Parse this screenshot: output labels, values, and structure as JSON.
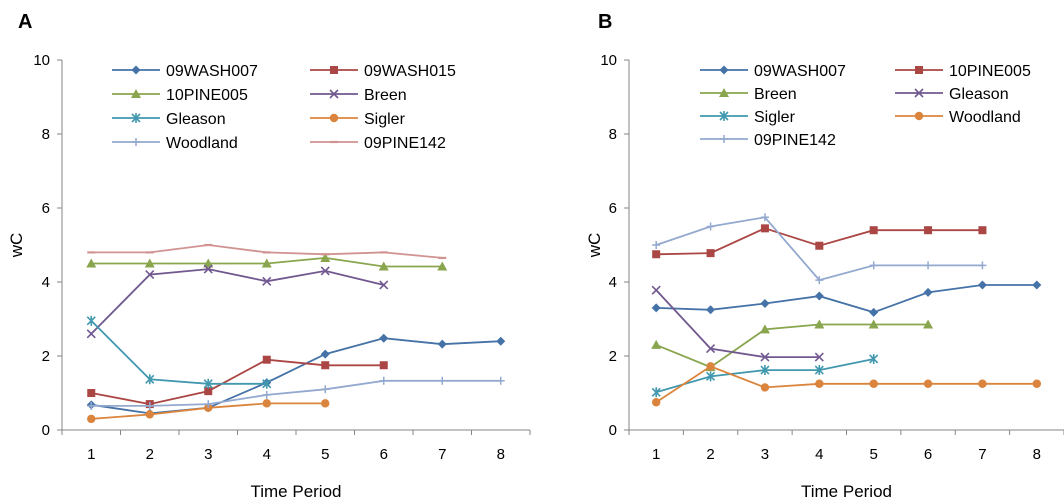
{
  "chart_data": [
    {
      "type": "line",
      "panel_label": "A",
      "xlabel": "Time Period",
      "ylabel": "wC",
      "xlim": [
        0.5,
        8.5
      ],
      "ylim": [
        0,
        10
      ],
      "x_ticks": [
        1,
        2,
        3,
        4,
        5,
        6,
        7,
        8
      ],
      "y_ticks": [
        0,
        2,
        4,
        6,
        8,
        10
      ],
      "grid": false,
      "legend_position": "top",
      "series": [
        {
          "name": "09WASH007",
          "color": "#4572A7",
          "marker": "diamond",
          "x": [
            1,
            2,
            3,
            4,
            5,
            6,
            7,
            8
          ],
          "values": [
            0.68,
            0.45,
            0.6,
            1.28,
            2.05,
            2.48,
            2.32,
            2.4
          ]
        },
        {
          "name": "09WASH015",
          "color": "#AA4643",
          "marker": "square",
          "x": [
            1,
            2,
            3,
            4,
            5,
            6
          ],
          "values": [
            1.0,
            0.7,
            1.05,
            1.9,
            1.75,
            1.75
          ]
        },
        {
          "name": "10PINE005",
          "color": "#89A54E",
          "marker": "triangle",
          "x": [
            1,
            2,
            3,
            4,
            5,
            6,
            7
          ],
          "values": [
            4.5,
            4.5,
            4.5,
            4.5,
            4.65,
            4.42,
            4.42
          ]
        },
        {
          "name": "Breen",
          "color": "#71588F",
          "marker": "x",
          "x": [
            1,
            2,
            3,
            4,
            5,
            6
          ],
          "values": [
            2.6,
            4.2,
            4.35,
            4.02,
            4.3,
            3.92
          ]
        },
        {
          "name": "Gleason",
          "color": "#4198AF",
          "marker": "star",
          "x": [
            1,
            2,
            3,
            4
          ],
          "values": [
            2.95,
            1.37,
            1.25,
            1.25
          ]
        },
        {
          "name": "Sigler",
          "color": "#DB843D",
          "marker": "circle",
          "x": [
            1,
            2,
            3,
            4,
            5
          ],
          "values": [
            0.3,
            0.42,
            0.6,
            0.72,
            0.72
          ]
        },
        {
          "name": "Woodland",
          "color": "#93A9CF",
          "marker": "plus",
          "x": [
            1,
            2,
            3,
            4,
            5,
            6,
            7,
            8
          ],
          "values": [
            0.65,
            0.65,
            0.7,
            0.95,
            1.1,
            1.33,
            1.33,
            1.33
          ]
        },
        {
          "name": "09PINE142",
          "color": "#D19392",
          "marker": "dash",
          "x": [
            1,
            2,
            3,
            4,
            5,
            6,
            7
          ],
          "values": [
            4.8,
            4.8,
            5.0,
            4.8,
            4.75,
            4.8,
            4.65
          ]
        }
      ]
    },
    {
      "type": "line",
      "panel_label": "B",
      "xlabel": "Time Period",
      "ylabel": "wC",
      "xlim": [
        0.5,
        8.5
      ],
      "ylim": [
        0,
        10
      ],
      "x_ticks": [
        1,
        2,
        3,
        4,
        5,
        6,
        7,
        8
      ],
      "y_ticks": [
        0,
        2,
        4,
        6,
        8,
        10
      ],
      "grid": false,
      "legend_position": "top",
      "series": [
        {
          "name": "09WASH007",
          "color": "#4572A7",
          "marker": "diamond",
          "x": [
            1,
            2,
            3,
            4,
            5,
            6,
            7,
            8
          ],
          "values": [
            3.3,
            3.25,
            3.42,
            3.62,
            3.18,
            3.72,
            3.92,
            3.92
          ]
        },
        {
          "name": "10PINE005",
          "color": "#AA4643",
          "marker": "square",
          "x": [
            1,
            2,
            3,
            4,
            5,
            6,
            7
          ],
          "values": [
            4.75,
            4.78,
            5.45,
            4.98,
            5.4,
            5.4,
            5.4
          ]
        },
        {
          "name": "Breen",
          "color": "#89A54E",
          "marker": "triangle",
          "x": [
            1,
            2,
            3,
            4,
            5,
            6
          ],
          "values": [
            2.3,
            1.7,
            2.72,
            2.85,
            2.85,
            2.85
          ]
        },
        {
          "name": "Gleason",
          "color": "#71588F",
          "marker": "x",
          "x": [
            1,
            2,
            3,
            4
          ],
          "values": [
            3.78,
            2.2,
            1.97,
            1.97
          ]
        },
        {
          "name": "Sigler",
          "color": "#4198AF",
          "marker": "star",
          "x": [
            1,
            2,
            3,
            4,
            5
          ],
          "values": [
            1.02,
            1.45,
            1.62,
            1.62,
            1.92
          ]
        },
        {
          "name": "Woodland",
          "color": "#DB843D",
          "marker": "circle",
          "x": [
            1,
            2,
            3,
            4,
            5,
            6,
            7,
            8
          ],
          "values": [
            0.75,
            1.72,
            1.15,
            1.25,
            1.25,
            1.25,
            1.25,
            1.25
          ]
        },
        {
          "name": "09PINE142",
          "color": "#93A9CF",
          "marker": "plus",
          "x": [
            1,
            2,
            3,
            4,
            5,
            6,
            7
          ],
          "values": [
            5.0,
            5.5,
            5.75,
            4.05,
            4.45,
            4.45,
            4.45
          ]
        }
      ]
    }
  ]
}
